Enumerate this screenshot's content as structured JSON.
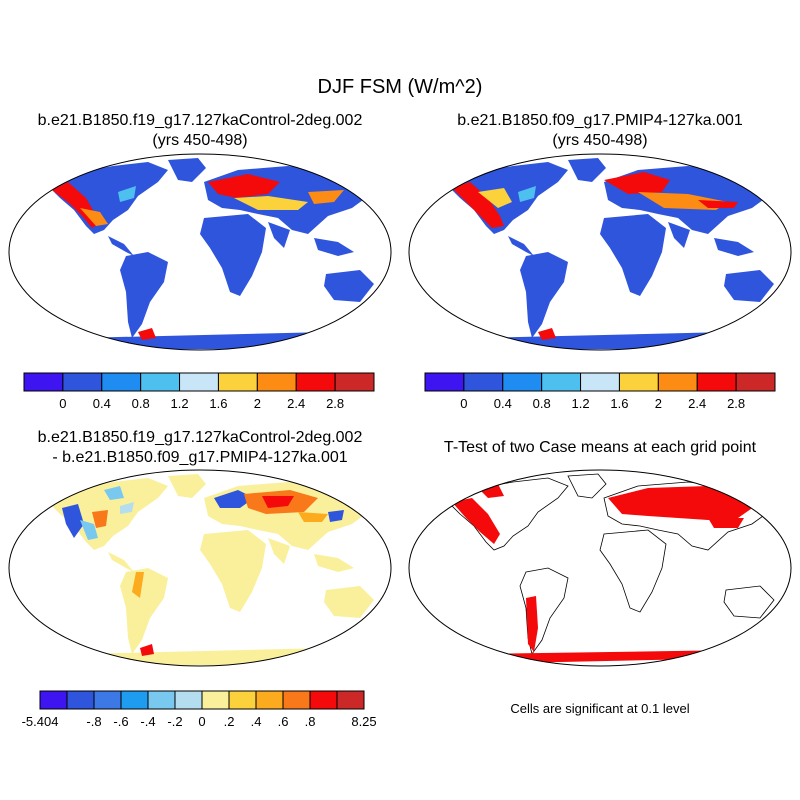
{
  "figure": {
    "title": "DJF FSM (W/m^2)"
  },
  "panels": [
    {
      "title_line1": "b.e21.B1850.f19_g17.127kaControl-2deg.002",
      "title_line2": "(yrs 450-498)",
      "kind": "field"
    },
    {
      "title_line1": "b.e21.B1850.f09_g17.PMIP4-127ka.001",
      "title_line2": "(yrs 450-498)",
      "kind": "field"
    },
    {
      "title_line1": "b.e21.B1850.f19_g17.127kaControl-2deg.002",
      "title_line2": "- b.e21.B1850.f09_g17.PMIP4-127ka.001",
      "kind": "difference"
    },
    {
      "title_line1": "T-Test of two Case means at each grid point",
      "title_line2": "",
      "kind": "significance"
    }
  ],
  "colorbars": {
    "case": {
      "colors": [
        "#3e14f0",
        "#2e55dc",
        "#1e8cf0",
        "#4ec0f0",
        "#c8e6f8",
        "#fcd23c",
        "#fc8c14",
        "#f40a0a",
        "#cc2828"
      ],
      "labels": [
        "0",
        "0.4",
        "0.8",
        "1.2",
        "1.6",
        "2",
        "2.4",
        "2.8"
      ]
    },
    "diff": {
      "colors": [
        "#3e14f0",
        "#2e55dc",
        "#3c78e6",
        "#1e9cf0",
        "#78c8f0",
        "#b4def0",
        "#faf09c",
        "#fcd23c",
        "#fcaa1e",
        "#f8781a",
        "#f40a0a",
        "#cc2828"
      ],
      "labels": [
        "-5.404",
        "-.8",
        "-.6",
        "-.4",
        "-.2",
        "0",
        ".2",
        ".4",
        ".6",
        ".8",
        "8.25"
      ],
      "label_slots": [
        0,
        2,
        3,
        4,
        5,
        6,
        7,
        8,
        9,
        10,
        12
      ]
    }
  },
  "significance_note": "Cells are significant at 0.1 level",
  "colors": {
    "ocean_field": "#ffffff",
    "land_low": "#2e55dc",
    "snow_high": "#f40a0a",
    "diff_neutral": "#faf09c",
    "significant": "#f40a0a"
  }
}
